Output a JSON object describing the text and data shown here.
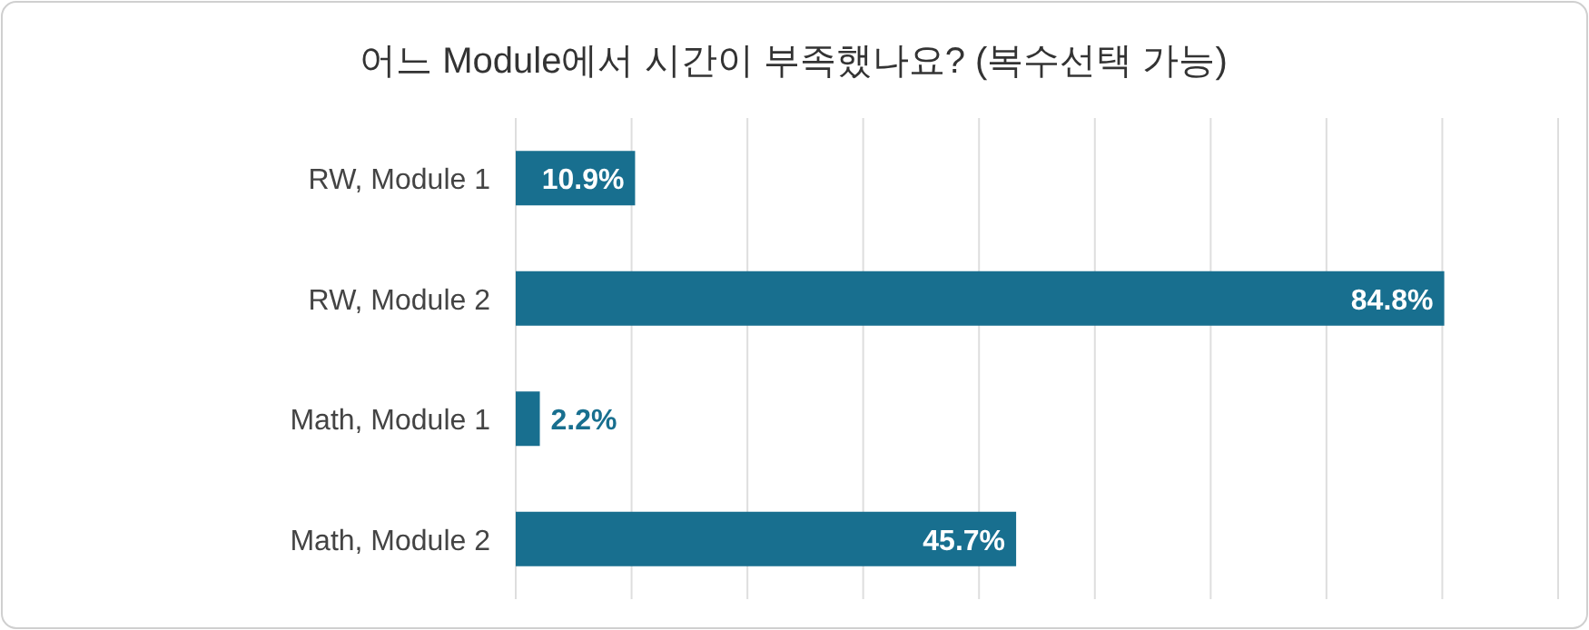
{
  "chart_data": {
    "type": "bar",
    "orientation": "horizontal",
    "title": "어느 Module에서 시간이 부족했나요? (복수선택 가능)",
    "categories": [
      "RW, Module 1",
      "RW, Module 2",
      "Math, Module 1",
      "Math, Module 2"
    ],
    "values": [
      10.9,
      84.8,
      2.2,
      45.7
    ],
    "value_labels": [
      "10.9%",
      "84.8%",
      "2.2%",
      "45.7%"
    ],
    "color": "#186f8f",
    "xlim": [
      0,
      95.2
    ],
    "xticks": [
      {
        "value": 0,
        "label": null
      },
      {
        "value": 10.58,
        "label": null
      },
      {
        "value": 21.16,
        "label": null
      },
      {
        "value": 31.73,
        "label": null
      },
      {
        "value": 42.31,
        "label": null
      },
      {
        "value": 52.89,
        "label": null
      },
      {
        "value": 63.47,
        "label": null
      },
      {
        "value": 74.04,
        "label": null
      },
      {
        "value": 84.62,
        "label": null
      },
      {
        "value": 95.2,
        "label": null
      }
    ],
    "grid": "x",
    "tick_labels": "y"
  }
}
